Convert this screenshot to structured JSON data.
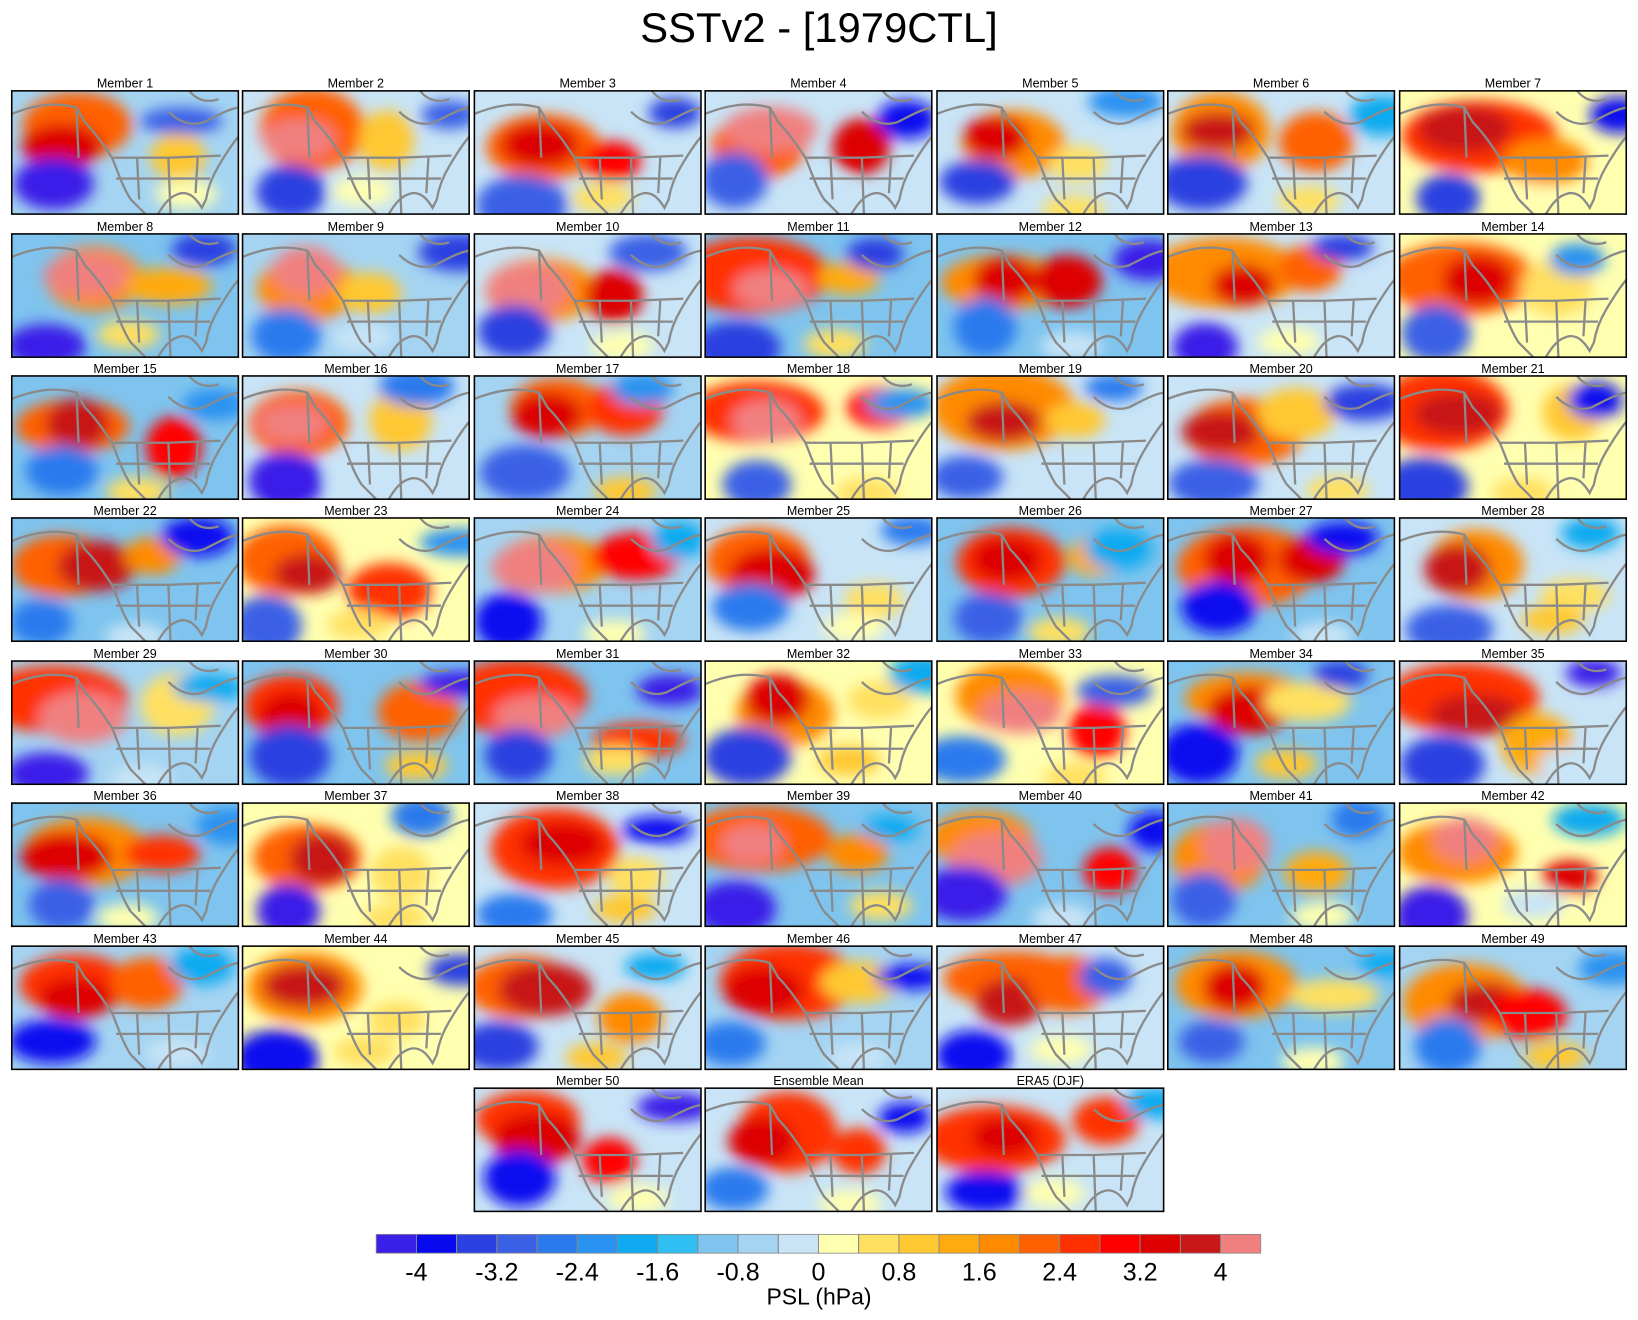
{
  "title": "SSTv2 - [1979CTL]",
  "panels": [
    "Member 1",
    "Member 2",
    "Member 3",
    "Member 4",
    "Member 5",
    "Member 6",
    "Member 7",
    "Member 8",
    "Member 9",
    "Member 10",
    "Member 11",
    "Member 12",
    "Member 13",
    "Member 14",
    "Member 15",
    "Member 16",
    "Member 17",
    "Member 18",
    "Member 19",
    "Member 20",
    "Member 21",
    "Member 22",
    "Member 23",
    "Member 24",
    "Member 25",
    "Member 26",
    "Member 27",
    "Member 28",
    "Member 29",
    "Member 30",
    "Member 31",
    "Member 32",
    "Member 33",
    "Member 34",
    "Member 35",
    "Member 36",
    "Member 37",
    "Member 38",
    "Member 39",
    "Member 40",
    "Member 41",
    "Member 42",
    "Member 43",
    "Member 44",
    "Member 45",
    "Member 46",
    "Member 47",
    "Member 48",
    "Member 49",
    "Member 50",
    "Ensemble Mean",
    "ERA5 (DJF)"
  ],
  "colorbar": {
    "label": "PSL (hPa)",
    "colors": [
      "#3a1fe8",
      "#0a0af0",
      "#2a40e0",
      "#3a60e6",
      "#2a7aee",
      "#2a92f0",
      "#10aaf0",
      "#30bff2",
      "#7ec4ee",
      "#a4d4f2",
      "#c8e4f6",
      "#ffffb0",
      "#ffe060",
      "#ffc830",
      "#ffaa10",
      "#ff8a00",
      "#ff6000",
      "#ff3000",
      "#ff0000",
      "#dd0000",
      "#c81818",
      "#f08080"
    ],
    "levels": [
      -4,
      -3.6,
      -3.2,
      -2.8,
      -2.4,
      -2,
      -1.6,
      -1.2,
      -0.8,
      -0.4,
      0,
      0.4,
      0.8,
      1.2,
      1.6,
      2,
      2.4,
      2.8,
      3.2,
      3.6,
      4
    ],
    "ticks": [
      -4,
      -3.2,
      -2.4,
      -1.6,
      -0.8,
      0,
      0.8,
      1.6,
      2.4,
      3.2,
      4
    ]
  }
}
